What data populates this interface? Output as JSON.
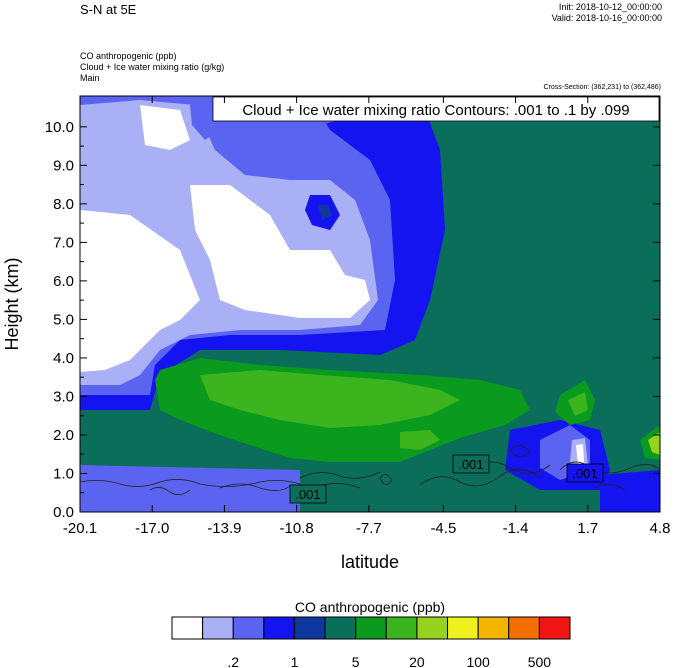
{
  "header": {
    "title": "S-N at 5E",
    "init": "Init: 2018-10-12_00:00:00",
    "valid": "Valid: 2018-10-16_00:00:00",
    "field1": "CO anthropogenic   (ppb)",
    "field2": "Cloud + Ice water mixing ratio   (g/kg)",
    "field3": "Main",
    "cross_section": "Cross-Section: (362,231) to (362,486)"
  },
  "chart_data": {
    "type": "heatmap",
    "title": "Cloud + Ice water mixing ratio Contours: .001 to .1 by .099",
    "xlabel": "latitude",
    "ylabel": "Height (km)",
    "x_ticks": [
      "-20.1",
      "-17.0",
      "-13.9",
      "-10.8",
      "-7.7",
      "-4.5",
      "-1.4",
      "1.7",
      "4.8"
    ],
    "y_ticks": [
      "0.0",
      "1.0",
      "2.0",
      "3.0",
      "4.0",
      "5.0",
      "6.0",
      "7.0",
      "8.0",
      "9.0",
      "10.0"
    ],
    "xlim": [
      -20.1,
      4.8
    ],
    "ylim": [
      0,
      10.8
    ],
    "contour_labels": [
      {
        "text": ".001",
        "x": -10.0,
        "y": 0.4
      },
      {
        "text": ".001",
        "x": -3.5,
        "y": 1.25
      },
      {
        "text": ".001",
        "x": 2.1,
        "y": 1.0
      }
    ],
    "colorbar": {
      "title": "CO anthropogenic  (ppb)",
      "colors": [
        "#ffffff",
        "#aab0f5",
        "#5a64f0",
        "#1414f0",
        "#0f37a0",
        "#0a6e5a",
        "#0a9a1e",
        "#3cb41e",
        "#96d21e",
        "#f0f01e",
        "#f5b400",
        "#f56e00",
        "#f01414"
      ],
      "labels": [
        ".2",
        "1",
        "5",
        "20",
        "100",
        "500"
      ]
    }
  }
}
